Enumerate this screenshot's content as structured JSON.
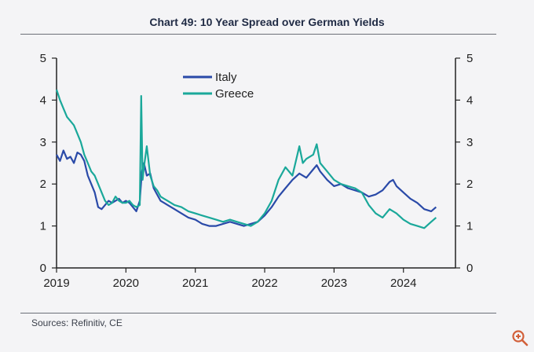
{
  "title": "Chart 49: 10 Year Spread over German Yields",
  "source": "Sources: Refinitiv, CE",
  "zoom_icon": "zoom-in-icon",
  "chart_data": {
    "type": "line",
    "title": "Chart 49: 10 Year Spread over German Yields",
    "xlabel": "",
    "ylabel": "",
    "xlim": [
      2019.0,
      2024.75
    ],
    "ylim": [
      0,
      5
    ],
    "x_ticks": [
      "2019",
      "2020",
      "2021",
      "2022",
      "2023",
      "2024"
    ],
    "y_ticks": [
      "0",
      "1",
      "2",
      "3",
      "4",
      "5"
    ],
    "legend_position": "top-center",
    "series": [
      {
        "name": "Italy",
        "color": "#2a4aa8",
        "x": [
          2019.0,
          2019.05,
          2019.1,
          2019.15,
          2019.2,
          2019.25,
          2019.3,
          2019.35,
          2019.4,
          2019.45,
          2019.5,
          2019.55,
          2019.6,
          2019.65,
          2019.7,
          2019.75,
          2019.8,
          2019.85,
          2019.9,
          2019.95,
          2020.0,
          2020.05,
          2020.1,
          2020.15,
          2020.2,
          2020.23,
          2020.26,
          2020.3,
          2020.35,
          2020.4,
          2020.45,
          2020.5,
          2020.55,
          2020.6,
          2020.7,
          2020.8,
          2020.9,
          2021.0,
          2021.1,
          2021.2,
          2021.3,
          2021.4,
          2021.5,
          2021.6,
          2021.7,
          2021.8,
          2021.9,
          2022.0,
          2022.1,
          2022.2,
          2022.3,
          2022.4,
          2022.5,
          2022.6,
          2022.7,
          2022.75,
          2022.8,
          2022.9,
          2023.0,
          2023.1,
          2023.2,
          2023.3,
          2023.4,
          2023.5,
          2023.6,
          2023.7,
          2023.8,
          2023.85,
          2023.9,
          2024.0,
          2024.1,
          2024.2,
          2024.3,
          2024.4,
          2024.47
        ],
        "values": [
          2.7,
          2.55,
          2.8,
          2.6,
          2.65,
          2.5,
          2.75,
          2.7,
          2.55,
          2.2,
          2.0,
          1.8,
          1.45,
          1.4,
          1.5,
          1.6,
          1.55,
          1.6,
          1.65,
          1.55,
          1.6,
          1.55,
          1.45,
          1.35,
          1.6,
          2.3,
          2.5,
          2.2,
          2.25,
          1.9,
          1.75,
          1.6,
          1.55,
          1.5,
          1.4,
          1.3,
          1.2,
          1.15,
          1.05,
          1.0,
          1.0,
          1.05,
          1.1,
          1.05,
          1.0,
          1.05,
          1.1,
          1.25,
          1.45,
          1.7,
          1.9,
          2.1,
          2.25,
          2.15,
          2.35,
          2.45,
          2.3,
          2.1,
          1.95,
          2.0,
          1.9,
          1.85,
          1.8,
          1.7,
          1.75,
          1.85,
          2.05,
          2.1,
          1.95,
          1.8,
          1.65,
          1.55,
          1.4,
          1.35,
          1.45
        ]
      },
      {
        "name": "Greece",
        "color": "#1aa89a",
        "x": [
          2019.0,
          2019.05,
          2019.1,
          2019.15,
          2019.2,
          2019.25,
          2019.3,
          2019.35,
          2019.4,
          2019.45,
          2019.5,
          2019.55,
          2019.6,
          2019.65,
          2019.7,
          2019.75,
          2019.8,
          2019.85,
          2019.9,
          2019.95,
          2020.0,
          2020.05,
          2020.1,
          2020.15,
          2020.2,
          2020.22,
          2020.24,
          2020.26,
          2020.3,
          2020.35,
          2020.4,
          2020.45,
          2020.5,
          2020.55,
          2020.6,
          2020.7,
          2020.8,
          2020.9,
          2021.0,
          2021.1,
          2021.2,
          2021.3,
          2021.4,
          2021.5,
          2021.6,
          2021.7,
          2021.8,
          2021.9,
          2022.0,
          2022.1,
          2022.2,
          2022.3,
          2022.4,
          2022.5,
          2022.55,
          2022.6,
          2022.7,
          2022.75,
          2022.8,
          2022.9,
          2023.0,
          2023.1,
          2023.2,
          2023.3,
          2023.4,
          2023.5,
          2023.6,
          2023.7,
          2023.8,
          2023.9,
          2024.0,
          2024.1,
          2024.2,
          2024.3,
          2024.4,
          2024.47
        ],
        "values": [
          4.25,
          4.0,
          3.8,
          3.6,
          3.5,
          3.4,
          3.2,
          3.0,
          2.7,
          2.5,
          2.3,
          2.2,
          2.0,
          1.8,
          1.6,
          1.5,
          1.55,
          1.7,
          1.6,
          1.55,
          1.55,
          1.6,
          1.5,
          1.45,
          1.5,
          4.1,
          2.1,
          2.4,
          2.9,
          2.2,
          1.95,
          1.85,
          1.7,
          1.65,
          1.6,
          1.5,
          1.45,
          1.35,
          1.3,
          1.25,
          1.2,
          1.15,
          1.1,
          1.15,
          1.1,
          1.05,
          1.0,
          1.1,
          1.3,
          1.6,
          2.1,
          2.4,
          2.2,
          2.9,
          2.5,
          2.6,
          2.7,
          2.95,
          2.5,
          2.3,
          2.1,
          2.0,
          1.95,
          1.9,
          1.8,
          1.5,
          1.3,
          1.2,
          1.4,
          1.3,
          1.15,
          1.05,
          1.0,
          0.95,
          1.1,
          1.2
        ]
      }
    ]
  }
}
